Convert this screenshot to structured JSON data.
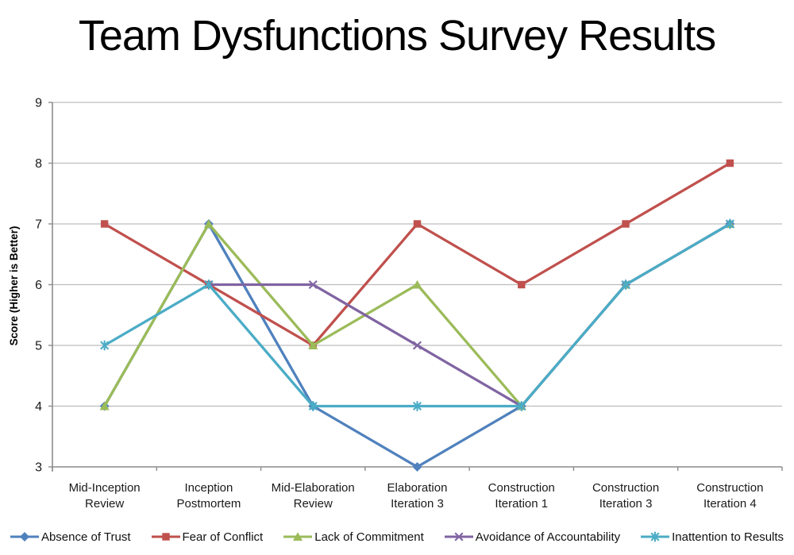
{
  "title": "Team Dysfunctions Survey Results",
  "chart_data": {
    "type": "line",
    "title": "Team Dysfunctions Survey Results",
    "xlabel": "",
    "ylabel": "Score (Higher is Better)",
    "ylim": [
      3,
      9
    ],
    "yticks": [
      3,
      4,
      5,
      6,
      7,
      8,
      9
    ],
    "grid": true,
    "legend_position": "bottom",
    "categories": [
      "Mid-Inception Review",
      "Inception Postmortem",
      "Mid-Elaboration Review",
      "Elaboration Iteration 3",
      "Construction Iteration 1",
      "Construction Iteration 3",
      "Construction Iteration 4"
    ],
    "series": [
      {
        "name": "Absence of Trust",
        "color": "#4F81BD",
        "marker": "diamond",
        "values": [
          4,
          7,
          4,
          3,
          4,
          6,
          7
        ]
      },
      {
        "name": "Fear of Conflict",
        "color": "#C0504D",
        "marker": "square",
        "values": [
          7,
          6,
          5,
          7,
          6,
          7,
          8
        ]
      },
      {
        "name": "Lack of Commitment",
        "color": "#9BBB59",
        "marker": "triangle",
        "values": [
          4,
          7,
          5,
          6,
          4,
          6,
          7
        ]
      },
      {
        "name": "Avoidance of Accountability",
        "color": "#8064A2",
        "marker": "x",
        "values": [
          null,
          6,
          6,
          5,
          4,
          6,
          7
        ]
      },
      {
        "name": "Inattention to Results",
        "color": "#4BACC6",
        "marker": "asterisk",
        "values": [
          5,
          6,
          4,
          4,
          4,
          6,
          7
        ]
      }
    ],
    "axis_color": "#8C8C8C",
    "grid_color": "#BDBDBD",
    "text_color": "#1a1a1a"
  }
}
